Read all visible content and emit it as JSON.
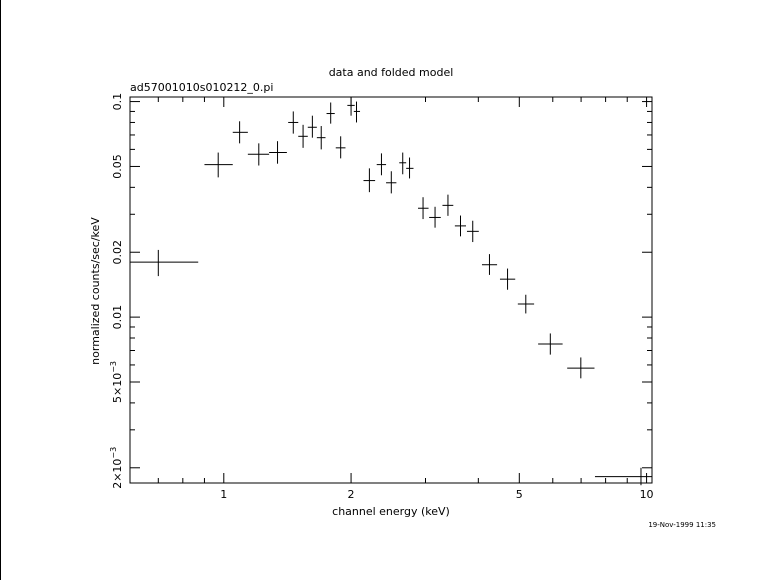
{
  "chart_data": {
    "type": "scatter",
    "title": "data and folded model",
    "subtitle": "ad57001010s010212_0.pi",
    "xlabel": "channel energy (keV)",
    "ylabel": "normalized counts/sec/keV",
    "timestamp": "19-Nov-1999 11:35",
    "x_scale": "log",
    "y_scale": "log",
    "xlim": [
      0.6,
      10.3
    ],
    "ylim": [
      0.0017,
      0.105
    ],
    "x_ticks": [
      {
        "value": 1,
        "label": "1"
      },
      {
        "value": 2,
        "label": "2"
      },
      {
        "value": 5,
        "label": "5"
      },
      {
        "value": 10,
        "label": "10"
      }
    ],
    "y_ticks": [
      {
        "value": 0.1,
        "label": "0.1"
      },
      {
        "value": 0.05,
        "label": "0.05"
      },
      {
        "value": 0.02,
        "label": "0.02"
      },
      {
        "value": 0.01,
        "label": "0.01"
      },
      {
        "value": 0.005,
        "label": "5×10",
        "exp": "−3"
      },
      {
        "value": 0.002,
        "label": "2×10",
        "exp": "−3"
      }
    ],
    "series": [
      {
        "points": [
          {
            "x": 0.7,
            "xlo": 0.6,
            "xhi": 0.87,
            "y": 0.018,
            "ylo": 0.0155,
            "yhi": 0.0205
          },
          {
            "x": 0.97,
            "xlo": 0.9,
            "xhi": 1.05,
            "y": 0.051,
            "ylo": 0.0445,
            "yhi": 0.058
          },
          {
            "x": 1.09,
            "xlo": 1.05,
            "xhi": 1.14,
            "y": 0.072,
            "ylo": 0.064,
            "yhi": 0.081
          },
          {
            "x": 1.21,
            "xlo": 1.14,
            "xhi": 1.28,
            "y": 0.057,
            "ylo": 0.0505,
            "yhi": 0.064
          },
          {
            "x": 1.34,
            "xlo": 1.28,
            "xhi": 1.41,
            "y": 0.058,
            "ylo": 0.0515,
            "yhi": 0.0655
          },
          {
            "x": 1.46,
            "xlo": 1.42,
            "xhi": 1.5,
            "y": 0.08,
            "ylo": 0.071,
            "yhi": 0.09
          },
          {
            "x": 1.54,
            "xlo": 1.5,
            "xhi": 1.58,
            "y": 0.069,
            "ylo": 0.061,
            "yhi": 0.078
          },
          {
            "x": 1.62,
            "xlo": 1.58,
            "xhi": 1.66,
            "y": 0.076,
            "ylo": 0.068,
            "yhi": 0.086
          },
          {
            "x": 1.7,
            "xlo": 1.66,
            "xhi": 1.74,
            "y": 0.068,
            "ylo": 0.06,
            "yhi": 0.077
          },
          {
            "x": 1.79,
            "xlo": 1.75,
            "xhi": 1.83,
            "y": 0.088,
            "ylo": 0.079,
            "yhi": 0.099
          },
          {
            "x": 1.89,
            "xlo": 1.84,
            "xhi": 1.94,
            "y": 0.061,
            "ylo": 0.0545,
            "yhi": 0.069
          },
          {
            "x": 2.0,
            "xlo": 1.96,
            "xhi": 2.04,
            "y": 0.096,
            "ylo": 0.086,
            "yhi": 0.105
          },
          {
            "x": 2.06,
            "xlo": 2.03,
            "xhi": 2.1,
            "y": 0.09,
            "ylo": 0.08,
            "yhi": 0.1
          },
          {
            "x": 2.21,
            "xlo": 2.14,
            "xhi": 2.28,
            "y": 0.043,
            "ylo": 0.038,
            "yhi": 0.049
          },
          {
            "x": 2.36,
            "xlo": 2.3,
            "xhi": 2.42,
            "y": 0.051,
            "ylo": 0.0455,
            "yhi": 0.0575
          },
          {
            "x": 2.49,
            "xlo": 2.42,
            "xhi": 2.56,
            "y": 0.042,
            "ylo": 0.0375,
            "yhi": 0.0475
          },
          {
            "x": 2.65,
            "xlo": 2.6,
            "xhi": 2.7,
            "y": 0.052,
            "ylo": 0.046,
            "yhi": 0.058
          },
          {
            "x": 2.75,
            "xlo": 2.7,
            "xhi": 2.81,
            "y": 0.049,
            "ylo": 0.044,
            "yhi": 0.055
          },
          {
            "x": 2.96,
            "xlo": 2.88,
            "xhi": 3.05,
            "y": 0.032,
            "ylo": 0.0285,
            "yhi": 0.036
          },
          {
            "x": 3.16,
            "xlo": 3.06,
            "xhi": 3.26,
            "y": 0.029,
            "ylo": 0.026,
            "yhi": 0.0325
          },
          {
            "x": 3.39,
            "xlo": 3.29,
            "xhi": 3.49,
            "y": 0.033,
            "ylo": 0.0295,
            "yhi": 0.037
          },
          {
            "x": 3.63,
            "xlo": 3.52,
            "xhi": 3.74,
            "y": 0.0265,
            "ylo": 0.0237,
            "yhi": 0.0296
          },
          {
            "x": 3.88,
            "xlo": 3.76,
            "xhi": 4.01,
            "y": 0.025,
            "ylo": 0.0223,
            "yhi": 0.028
          },
          {
            "x": 4.25,
            "xlo": 4.08,
            "xhi": 4.43,
            "y": 0.0175,
            "ylo": 0.0157,
            "yhi": 0.0196
          },
          {
            "x": 4.69,
            "xlo": 4.5,
            "xhi": 4.89,
            "y": 0.015,
            "ylo": 0.0134,
            "yhi": 0.0168
          },
          {
            "x": 5.18,
            "xlo": 4.96,
            "xhi": 5.42,
            "y": 0.0115,
            "ylo": 0.0104,
            "yhi": 0.0127
          },
          {
            "x": 5.92,
            "xlo": 5.54,
            "xhi": 6.33,
            "y": 0.0075,
            "ylo": 0.0067,
            "yhi": 0.0084
          },
          {
            "x": 6.99,
            "xlo": 6.49,
            "xhi": 7.53,
            "y": 0.0058,
            "ylo": 0.0052,
            "yhi": 0.0065
          },
          {
            "x": 9.7,
            "xlo": 7.55,
            "xhi": 10.3,
            "y": 0.00182,
            "ylo": 0.00166,
            "yhi": 0.002
          }
        ]
      }
    ]
  }
}
